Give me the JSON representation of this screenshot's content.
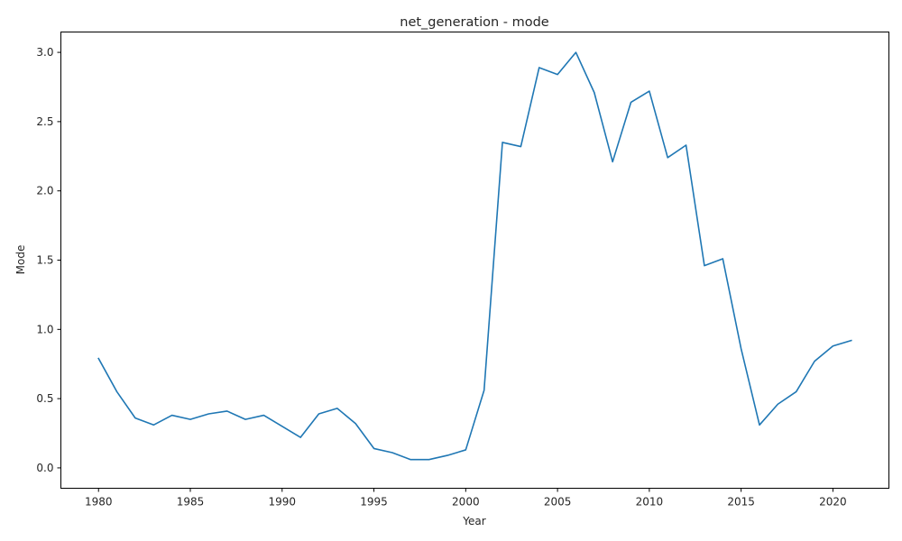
{
  "chart_data": {
    "type": "line",
    "title": "net_generation - mode",
    "xlabel": "Year",
    "ylabel": "Mode",
    "xlim": [
      1977.95,
      2023.05
    ],
    "ylim": [
      -0.147,
      3.147
    ],
    "xticks": [
      1980,
      1985,
      1990,
      1995,
      2000,
      2005,
      2010,
      2015,
      2020
    ],
    "yticks": [
      0.0,
      0.5,
      1.0,
      1.5,
      2.0,
      2.5,
      3.0
    ],
    "ytick_labels": [
      "0.0",
      "0.5",
      "1.0",
      "1.5",
      "2.0",
      "2.5",
      "3.0"
    ],
    "grid": false,
    "line_color": "#1f77b4",
    "series": [
      {
        "name": "mode",
        "x": [
          1980,
          1981,
          1982,
          1983,
          1984,
          1985,
          1986,
          1987,
          1988,
          1989,
          1990,
          1991,
          1992,
          1993,
          1994,
          1995,
          1996,
          1997,
          1998,
          1999,
          2000,
          2001,
          2002,
          2003,
          2004,
          2005,
          2006,
          2007,
          2008,
          2009,
          2010,
          2011,
          2012,
          2013,
          2014,
          2015,
          2016,
          2017,
          2018,
          2019,
          2020,
          2021
        ],
        "values": [
          0.79,
          0.55,
          0.36,
          0.31,
          0.38,
          0.35,
          0.39,
          0.41,
          0.35,
          0.38,
          0.3,
          0.22,
          0.39,
          0.43,
          0.32,
          0.14,
          0.11,
          0.06,
          0.06,
          0.09,
          0.13,
          0.56,
          2.35,
          2.32,
          2.89,
          2.84,
          3.0,
          2.71,
          2.21,
          2.64,
          2.72,
          2.24,
          2.33,
          1.46,
          1.51,
          0.86,
          0.31,
          0.46,
          0.55,
          0.77,
          0.88,
          0.92
        ]
      }
    ]
  }
}
